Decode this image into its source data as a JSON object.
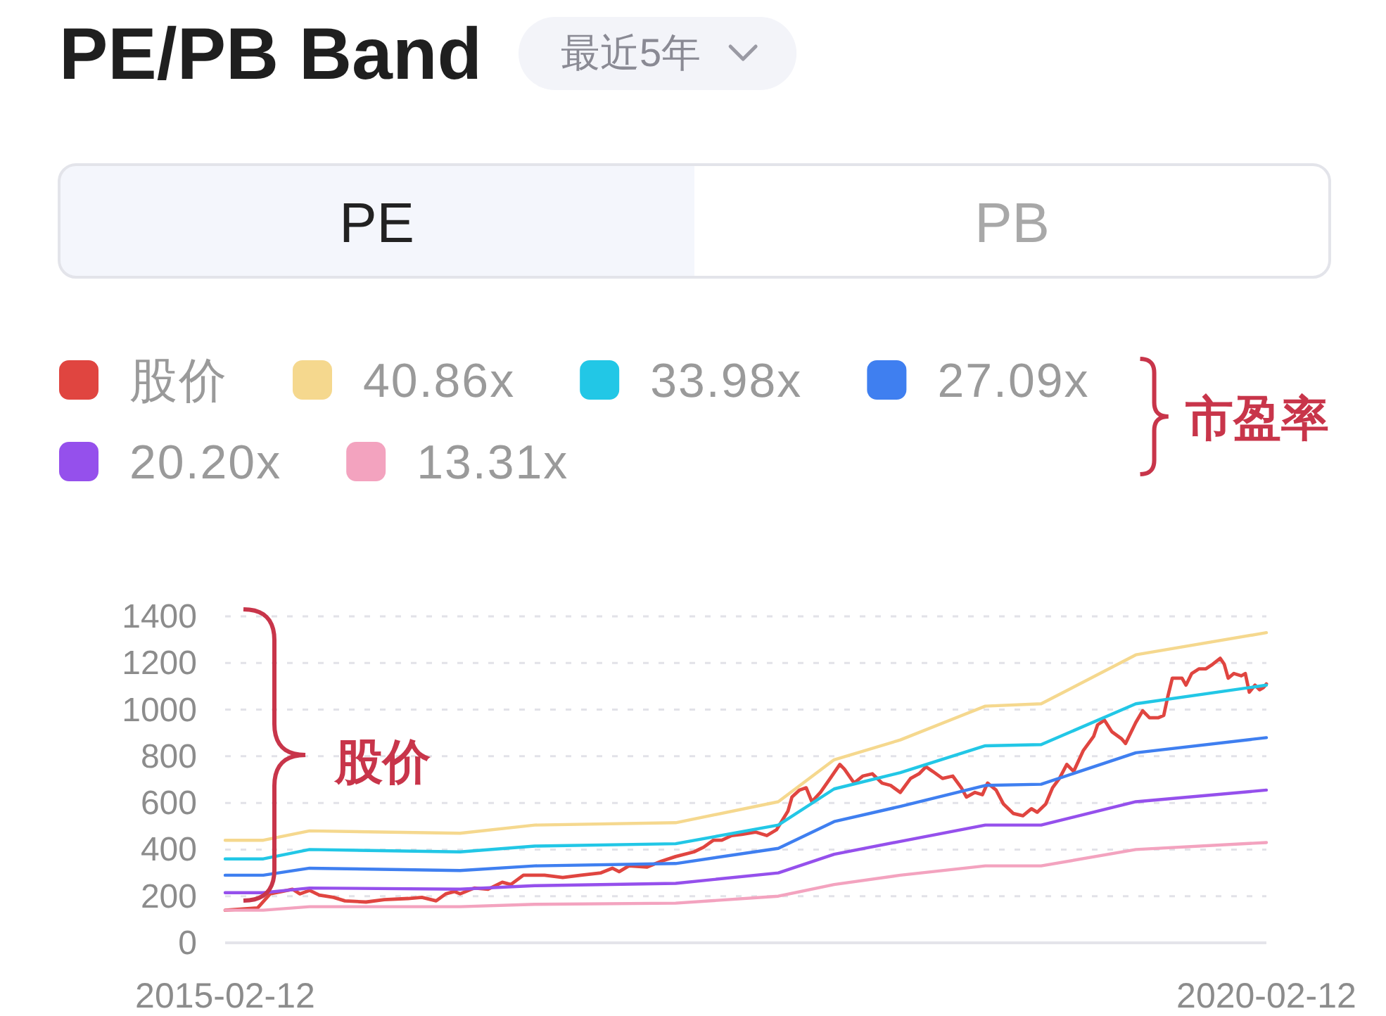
{
  "chart_data": {
    "type": "line",
    "title": "PE/PB Band",
    "subtitle": "最近5年",
    "annotations": [
      "PE",
      "PB",
      "市盈率",
      "股价"
    ],
    "xlim": [
      "2015-02-12",
      "2020-02-12"
    ],
    "xticks": [
      "2015-02-12",
      "2020-02-12"
    ],
    "ylim": [
      0,
      1400
    ],
    "yticks": [
      0,
      200,
      400,
      600,
      800,
      1000,
      1200,
      1400
    ],
    "grid": "y",
    "legend": "top",
    "marker": "none",
    "line_style": "solid",
    "series": [
      {
        "name": "股价",
        "color": "#e04540",
        "x": [
          "2015-02-12",
          "2015-04-10",
          "2015-05-02",
          "2015-05-22",
          "2015-06-10",
          "2015-06-23",
          "2015-07-10",
          "2015-07-27",
          "2015-08-21",
          "2015-09-10",
          "2015-10-17",
          "2015-11-18",
          "2015-12-30",
          "2016-01-23",
          "2016-02-17",
          "2016-03-05",
          "2016-03-20",
          "2016-03-30",
          "2016-04-24",
          "2016-05-18",
          "2016-06-12",
          "2016-06-27",
          "2016-07-19",
          "2016-08-25",
          "2016-09-26",
          "2016-10-28",
          "2016-12-02",
          "2016-12-22",
          "2017-01-03",
          "2017-01-20",
          "2017-02-21",
          "2017-03-18",
          "2017-04-12",
          "2017-05-14",
          "2017-05-31",
          "2017-06-17",
          "2017-07-02",
          "2017-07-19",
          "2017-08-06",
          "2017-08-30",
          "2017-09-19",
          "2017-10-06",
          "2017-10-26",
          "2017-11-02",
          "2017-11-15",
          "2017-11-27",
          "2017-12-07",
          "2017-12-22",
          "2018-01-08",
          "2018-01-25",
          "2018-02-02",
          "2018-02-19",
          "2018-03-06",
          "2018-03-23",
          "2018-04-09",
          "2018-04-24",
          "2018-05-11",
          "2018-05-29",
          "2018-06-13",
          "2018-06-25",
          "2018-07-07",
          "2018-07-24",
          "2018-08-11",
          "2018-08-26",
          "2018-09-04",
          "2018-09-19",
          "2018-10-02",
          "2018-10-11",
          "2018-10-26",
          "2018-11-08",
          "2018-11-25",
          "2018-12-12",
          "2018-12-27",
          "2019-01-06",
          "2019-01-21",
          "2019-02-02",
          "2019-02-14",
          "2019-02-27",
          "2019-03-11",
          "2019-03-28",
          "2019-04-15",
          "2019-04-22",
          "2019-05-04",
          "2019-05-17",
          "2019-06-03",
          "2019-06-10",
          "2019-06-28",
          "2019-07-10",
          "2019-07-22",
          "2019-08-06",
          "2019-08-16",
          "2019-08-23",
          "2019-08-31",
          "2019-09-17",
          "2019-09-24",
          "2019-10-04",
          "2019-10-17",
          "2019-10-29",
          "2019-11-10",
          "2019-11-23",
          "2019-11-30",
          "2019-12-07",
          "2019-12-17",
          "2019-12-30",
          "2020-01-06",
          "2020-01-13",
          "2020-01-23",
          "2020-01-31",
          "2020-02-07",
          "2020-02-12"
        ],
        "values": [
          140,
          150,
          210,
          220,
          230,
          210,
          225,
          205,
          195,
          180,
          175,
          185,
          190,
          195,
          180,
          210,
          220,
          210,
          235,
          230,
          260,
          250,
          290,
          290,
          280,
          290,
          300,
          320,
          305,
          330,
          325,
          350,
          370,
          390,
          410,
          440,
          440,
          460,
          465,
          475,
          460,
          485,
          565,
          625,
          655,
          665,
          605,
          645,
          705,
          765,
          745,
          685,
          715,
          725,
          685,
          675,
          645,
          705,
          725,
          755,
          735,
          705,
          715,
          665,
          625,
          645,
          635,
          685,
          655,
          595,
          555,
          545,
          575,
          560,
          595,
          665,
          705,
          765,
          735,
          825,
          885,
          935,
          955,
          905,
          875,
          855,
          945,
          995,
          965,
          965,
          975,
          1055,
          1135,
          1135,
          1105,
          1155,
          1175,
          1175,
          1195,
          1220,
          1195,
          1135,
          1155,
          1145,
          1155,
          1075,
          1105,
          1085,
          1095,
          1110
        ]
      },
      {
        "name": "40.86x",
        "color": "#f5d88e",
        "x": [
          "2015-02-12",
          "2015-04-20",
          "2015-07-10",
          "2016-03-30",
          "2016-08-08",
          "2017-04-12",
          "2017-10-09",
          "2018-01-15",
          "2018-05-11",
          "2018-10-07",
          "2019-01-13",
          "2019-06-28",
          "2020-02-12"
        ],
        "values": [
          440,
          440,
          480,
          470,
          505,
          515,
          605,
          785,
          870,
          1015,
          1025,
          1235,
          1330
        ]
      },
      {
        "name": "33.98x",
        "color": "#22c7e6",
        "x": [
          "2015-02-12",
          "2015-04-20",
          "2015-07-10",
          "2016-03-30",
          "2016-08-08",
          "2017-04-12",
          "2017-10-09",
          "2018-01-15",
          "2018-05-11",
          "2018-10-07",
          "2019-01-13",
          "2019-06-28",
          "2020-02-12"
        ],
        "values": [
          360,
          360,
          400,
          390,
          415,
          425,
          505,
          660,
          730,
          845,
          850,
          1025,
          1105
        ]
      },
      {
        "name": "27.09x",
        "color": "#3f7ff0",
        "x": [
          "2015-02-12",
          "2015-04-20",
          "2015-07-10",
          "2016-03-30",
          "2016-08-08",
          "2017-04-12",
          "2017-10-09",
          "2018-01-15",
          "2018-05-11",
          "2018-10-07",
          "2019-01-13",
          "2019-06-28",
          "2020-02-12"
        ],
        "values": [
          290,
          290,
          320,
          310,
          330,
          340,
          405,
          520,
          585,
          675,
          680,
          815,
          880
        ]
      },
      {
        "name": "20.20x",
        "color": "#9550ec",
        "x": [
          "2015-02-12",
          "2015-04-20",
          "2015-07-10",
          "2016-03-30",
          "2016-08-08",
          "2017-04-12",
          "2017-10-09",
          "2018-01-15",
          "2018-05-11",
          "2018-10-07",
          "2019-01-13",
          "2019-06-28",
          "2020-02-12"
        ],
        "values": [
          215,
          215,
          235,
          230,
          245,
          255,
          300,
          380,
          435,
          505,
          505,
          605,
          655
        ]
      },
      {
        "name": "13.31x",
        "color": "#f3a3bf",
        "x": [
          "2015-02-12",
          "2015-04-20",
          "2015-07-10",
          "2016-03-30",
          "2016-08-08",
          "2017-04-12",
          "2017-10-09",
          "2018-01-15",
          "2018-05-11",
          "2018-10-07",
          "2019-01-13",
          "2019-06-28",
          "2020-02-12"
        ],
        "values": [
          140,
          140,
          155,
          155,
          165,
          170,
          200,
          250,
          290,
          330,
          330,
          400,
          430
        ]
      }
    ]
  }
}
